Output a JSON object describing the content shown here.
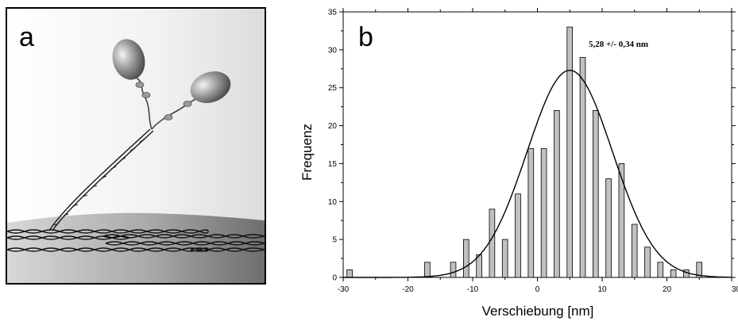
{
  "panel_a": {
    "letter": "a"
  },
  "panel_b": {
    "letter": "b"
  },
  "chart_data": {
    "type": "bar",
    "title": "",
    "xlabel": "Verschiebung [nm]",
    "ylabel": "Frequenz",
    "xlim": [
      -30,
      30
    ],
    "ylim": [
      0,
      35
    ],
    "x_ticks": [
      -30,
      -20,
      -10,
      0,
      10,
      20,
      30
    ],
    "y_ticks": [
      0,
      5,
      10,
      15,
      20,
      25,
      30,
      35
    ],
    "bar_color": "#c0c0c0",
    "grid": false,
    "x": [
      -29,
      -17,
      -13,
      -11,
      -9,
      -7,
      -5,
      -3,
      -1,
      1,
      3,
      5,
      7,
      9,
      11,
      13,
      15,
      17,
      19,
      21,
      23,
      25
    ],
    "values": [
      1,
      2,
      2,
      5,
      3,
      9,
      5,
      11,
      17,
      17,
      22,
      33,
      29,
      22,
      13,
      15,
      7,
      4,
      2,
      1,
      1,
      2
    ],
    "fit": {
      "type": "gaussian",
      "center": 5,
      "peak": 27.3,
      "sigma": 6.6
    },
    "annotation": "5,28 +/- 0,34 nm"
  }
}
